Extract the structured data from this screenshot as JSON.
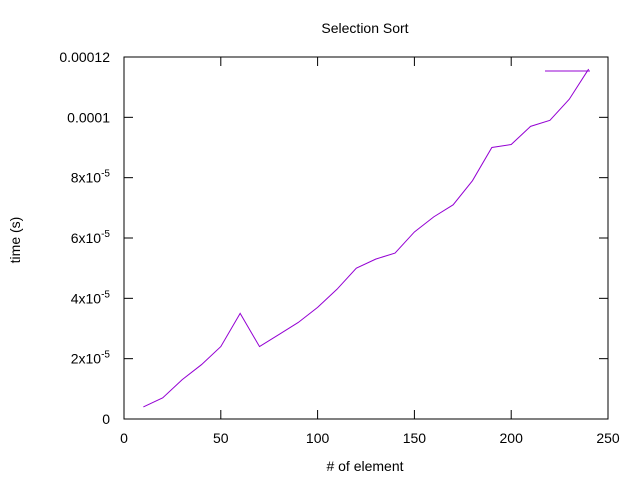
{
  "chart_data": {
    "type": "line",
    "title": "Selection Sort",
    "xlabel": "# of element",
    "ylabel": "time (s)",
    "xlim": [
      0,
      250
    ],
    "ylim": [
      0,
      0.00012
    ],
    "grid": false,
    "legend_position": "top-right",
    "x_ticks": [
      {
        "value": 0,
        "label": "0"
      },
      {
        "value": 50,
        "label": "50"
      },
      {
        "value": 100,
        "label": "100"
      },
      {
        "value": 150,
        "label": "150"
      },
      {
        "value": 200,
        "label": "200"
      },
      {
        "value": 250,
        "label": "250"
      }
    ],
    "y_ticks": [
      {
        "value": 0,
        "label": "0"
      },
      {
        "value": 2e-05,
        "mantissa": "2x10",
        "exponent": "-5"
      },
      {
        "value": 4e-05,
        "mantissa": "4x10",
        "exponent": "-5"
      },
      {
        "value": 6e-05,
        "mantissa": "6x10",
        "exponent": "-5"
      },
      {
        "value": 8e-05,
        "mantissa": "8x10",
        "exponent": "-5"
      },
      {
        "value": 0.0001,
        "label": "0.0001"
      },
      {
        "value": 0.00012,
        "label": "0.00012"
      }
    ],
    "series": [
      {
        "name": "",
        "color": "#9400d3",
        "x": [
          10,
          20,
          30,
          40,
          50,
          60,
          70,
          80,
          90,
          100,
          110,
          120,
          130,
          140,
          150,
          160,
          170,
          180,
          190,
          200,
          210,
          220,
          230,
          240
        ],
        "y": [
          4e-06,
          7e-06,
          1.3e-05,
          1.8e-05,
          2.4e-05,
          3.5e-05,
          2.4e-05,
          2.8e-05,
          3.2e-05,
          3.7e-05,
          4.3e-05,
          5e-05,
          5.3e-05,
          5.5e-05,
          6.2e-05,
          6.7e-05,
          7.1e-05,
          7.9e-05,
          9e-05,
          9.1e-05,
          9.7e-05,
          9.9e-05,
          0.000106,
          0.000116
        ]
      }
    ]
  }
}
